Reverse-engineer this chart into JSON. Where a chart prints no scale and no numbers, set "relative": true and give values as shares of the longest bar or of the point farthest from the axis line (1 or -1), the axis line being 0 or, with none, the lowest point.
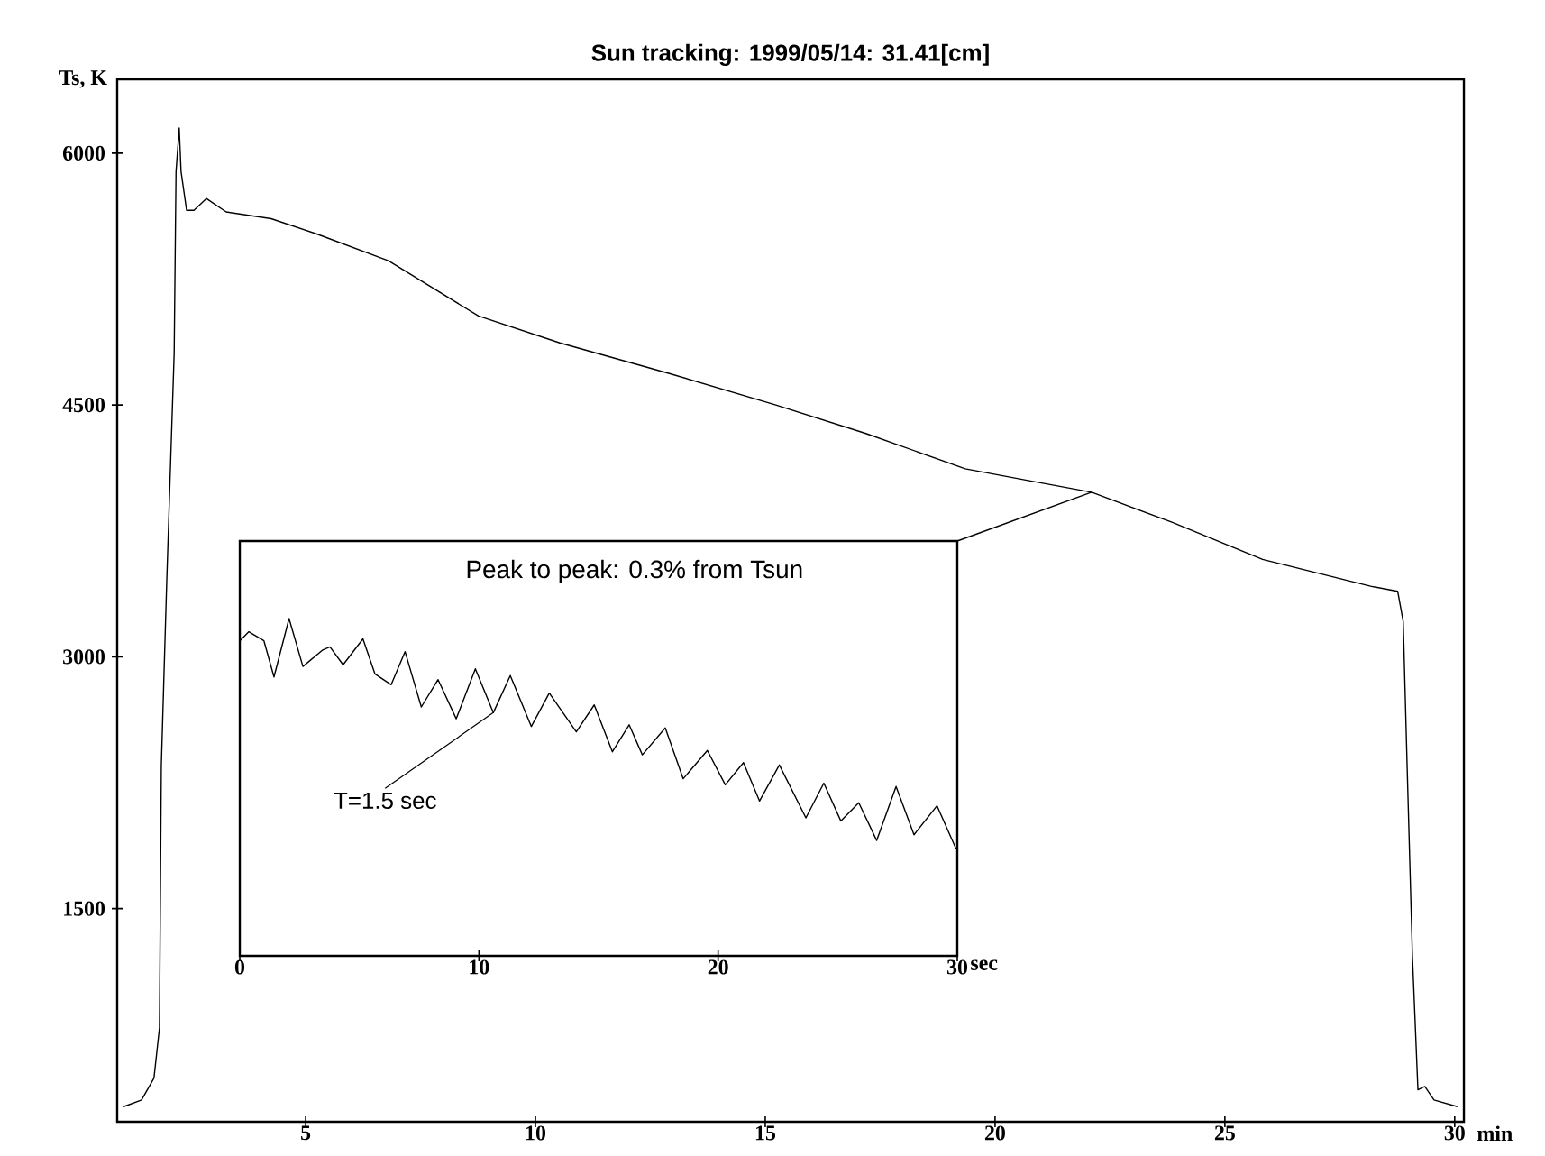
{
  "chart_data": [
    {
      "type": "line",
      "title": "Sun tracking: 1999/05/14: 31.41[cm]",
      "xlabel": "min",
      "ylabel": "Ts, K",
      "color": "#000000",
      "marker": "none",
      "line_style": "solid",
      "grid": false,
      "x": [
        1.04,
        1.43,
        1.7,
        1.82,
        1.86,
        1.98,
        2.14,
        2.18,
        2.25,
        2.29,
        2.41,
        2.57,
        2.84,
        3.27,
        4.25,
        5.23,
        6.8,
        8.76,
        10.53,
        12.88,
        15.23,
        17.19,
        19.35,
        20.72,
        22.1,
        23.86,
        25.82,
        28.17,
        28.76,
        28.88,
        28.96,
        29.08,
        29.2,
        29.35,
        29.55,
        30.06
      ],
      "values": [
        320,
        360,
        490,
        790,
        2350,
        3470,
        4810,
        5890,
        6150,
        5890,
        5660,
        5660,
        5730,
        5650,
        5610,
        5520,
        5360,
        5030,
        4870,
        4690,
        4500,
        4330,
        4120,
        4050,
        3980,
        3800,
        3580,
        3420,
        3390,
        3210,
        2400,
        1220,
        420,
        440,
        360,
        320
      ],
      "xlim": [
        0.9,
        30.2
      ],
      "ylim": [
        230,
        6440
      ],
      "xticks": [
        5,
        10,
        15,
        20,
        25,
        30
      ],
      "yticks": [
        1500,
        3000,
        4500,
        6000
      ]
    },
    {
      "type": "line",
      "xlabel": "sec",
      "color": "#000000",
      "marker": "none",
      "line_style": "solid",
      "relative": true,
      "tick_labels": "x",
      "x": [
        0,
        0.38,
        1.01,
        1.43,
        2.06,
        2.64,
        3.47,
        3.77,
        4.32,
        5.15,
        5.65,
        6.33,
        6.91,
        7.59,
        8.29,
        9.05,
        9.85,
        10.6,
        11.31,
        12.19,
        12.94,
        14.07,
        14.82,
        15.58,
        16.28,
        16.83,
        17.79,
        18.54,
        19.55,
        20.3,
        21.06,
        21.73,
        22.56,
        23.67,
        24.42,
        25.13,
        25.88,
        26.63,
        27.44,
        28.19,
        29.15,
        29.95
      ],
      "values": [
        0.934,
        0.961,
        0.934,
        0.827,
        1,
        0.858,
        0.907,
        0.916,
        0.863,
        0.94,
        0.836,
        0.804,
        0.902,
        0.738,
        0.819,
        0.703,
        0.851,
        0.721,
        0.831,
        0.68,
        0.779,
        0.664,
        0.744,
        0.605,
        0.685,
        0.596,
        0.676,
        0.525,
        0.609,
        0.507,
        0.573,
        0.459,
        0.566,
        0.409,
        0.512,
        0.4,
        0.454,
        0.342,
        0.502,
        0.359,
        0.445,
        0.317
      ],
      "xlim": [
        0,
        30
      ],
      "xticks": [
        0,
        10,
        20,
        30
      ],
      "annotations": [
        "Peak to peak: 0.3% from Tsun",
        {
          "text": "T=1.5 sec",
          "x": 10.6,
          "y": 0.721
        }
      ]
    }
  ]
}
